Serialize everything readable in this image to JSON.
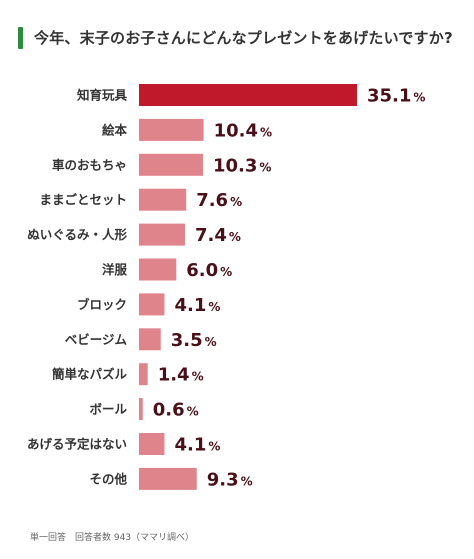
{
  "title": "今年、末子のお子さんにどんなプレゼントをあげたいですか?",
  "footnote": "単一回答　回答者数 943（ママリ調べ）",
  "colors": {
    "title_accent": "#2e8a3c",
    "highlight_bar": "#c0192c",
    "bar": "#e0848b",
    "value_text": "#4a1018",
    "label_text": "#333333"
  },
  "chart_data": {
    "type": "bar",
    "orientation": "horizontal",
    "unit": "%",
    "categories": [
      "知育玩具",
      "絵本",
      "車のおもちゃ",
      "ままごとセット",
      "ぬいぐるみ・人形",
      "洋服",
      "ブロック",
      "ベビージム",
      "簡単なパズル",
      "ボール",
      "あげる予定はない",
      "その他"
    ],
    "values": [
      35.1,
      10.4,
      10.3,
      7.6,
      7.4,
      6.0,
      4.1,
      3.5,
      1.4,
      0.6,
      4.1,
      9.3
    ],
    "value_labels": [
      "35.1",
      "10.4",
      "10.3",
      "7.6",
      "7.4",
      "6.0",
      "4.1",
      "3.5",
      "1.4",
      "0.6",
      "4.1",
      "9.3"
    ],
    "highlight_index": 0,
    "xlim": [
      0,
      35.1
    ],
    "grid": false,
    "legend": false
  }
}
